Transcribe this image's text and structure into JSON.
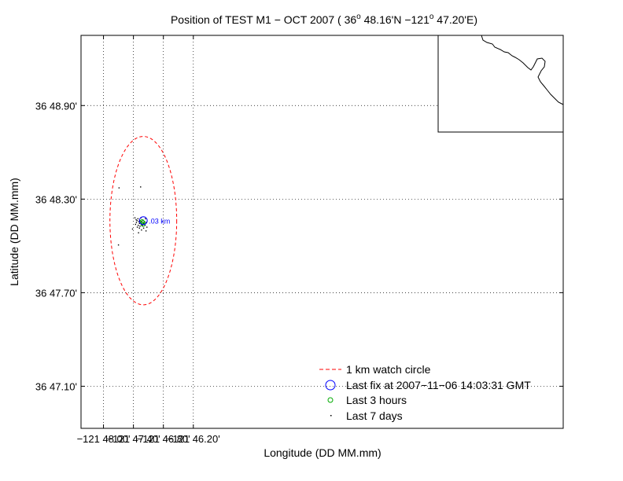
{
  "chart_data": {
    "type": "scatter",
    "title": {
      "main": "Position of TEST M1 − OCT 2007 ( 36",
      "deg1": "o",
      "mid": " 48.16'N −121",
      "deg2": "o",
      "end": " 47.20'E)"
    },
    "xlabel": "Longitude (DD MM.mm)",
    "ylabel": "Latitude (DD MM.mm)",
    "xlim": [
      -121.8075,
      -121.6465
    ],
    "ylim": [
      36.7805,
      36.8225
    ],
    "x_ticks": [
      {
        "value": -121.8,
        "label": "−121  48.00'"
      },
      {
        "value": -121.79,
        "label": "−121  47.40'"
      },
      {
        "value": -121.78,
        "label": "−121  46.80'"
      },
      {
        "value": -121.77,
        "label": "−121  46.20'"
      }
    ],
    "y_ticks": [
      {
        "value": 36.815,
        "label": "36  48.90'"
      },
      {
        "value": 36.805,
        "label": "36  48.30'"
      },
      {
        "value": 36.795,
        "label": "36  47.70'"
      },
      {
        "value": 36.785,
        "label": "36  47.10'"
      }
    ],
    "grid": true,
    "watch_circle": {
      "center": [
        -121.7867,
        36.8027
      ],
      "radius_lon": 0.01115,
      "radius_lat": 0.009
    },
    "last_fix": {
      "lon": -121.7867,
      "lat": 36.8027,
      "label": ".03 km"
    },
    "last_3_hours": [
      [
        -121.7869,
        36.8025
      ],
      [
        -121.7871,
        36.8026
      ],
      [
        -121.7868,
        36.8023
      ]
    ],
    "last_7_days": [
      [
        -121.7895,
        36.803
      ],
      [
        -121.7891,
        36.8028
      ],
      [
        -121.7888,
        36.8027
      ],
      [
        -121.7885,
        36.8029
      ],
      [
        -121.7882,
        36.8026
      ],
      [
        -121.788,
        36.8024
      ],
      [
        -121.7878,
        36.8027
      ],
      [
        -121.7876,
        36.8025
      ],
      [
        -121.7874,
        36.8023
      ],
      [
        -121.7872,
        36.8026
      ],
      [
        -121.787,
        36.8022
      ],
      [
        -121.7866,
        36.8024
      ],
      [
        -121.7863,
        36.8026
      ],
      [
        -121.7861,
        36.8022
      ],
      [
        -121.7878,
        36.8021
      ],
      [
        -121.7884,
        36.8022
      ],
      [
        -121.789,
        36.8025
      ],
      [
        -121.7893,
        36.8023
      ],
      [
        -121.786,
        36.8029
      ],
      [
        -121.7875,
        36.803
      ],
      [
        -121.788,
        36.8019
      ],
      [
        -121.7866,
        36.8019
      ],
      [
        -121.7858,
        36.8025
      ],
      [
        -121.7887,
        36.802
      ],
      [
        -121.7903,
        36.8018
      ],
      [
        -121.7883,
        36.8014
      ],
      [
        -121.7858,
        36.8016
      ],
      [
        -121.7876,
        36.8063
      ],
      [
        -121.7948,
        36.8062
      ],
      [
        -121.795,
        36.8001
      ],
      [
        -121.7873,
        36.8017
      ],
      [
        -121.7855,
        36.802
      ]
    ],
    "legend": {
      "placement": "bottom-right",
      "entries": [
        {
          "marker": "dashed-line",
          "color": "#ff0000",
          "label": "1 km watch circle"
        },
        {
          "marker": "circle",
          "color": "#0000ff",
          "label": "Last fix at 2007−11−06 14:03:31 GMT"
        },
        {
          "marker": "small-circle",
          "color": "#00aa00",
          "label": "Last 3 hours"
        },
        {
          "marker": "dot",
          "color": "#000000",
          "label": "Last 7 days"
        }
      ]
    },
    "inset": {
      "type": "coastline-map",
      "placement": "top-right"
    },
    "colors": {
      "watch_circle": "#ff0000",
      "last_fix": "#0000ff",
      "last_3_hours": "#00aa00",
      "last_7_days": "#000000"
    }
  }
}
